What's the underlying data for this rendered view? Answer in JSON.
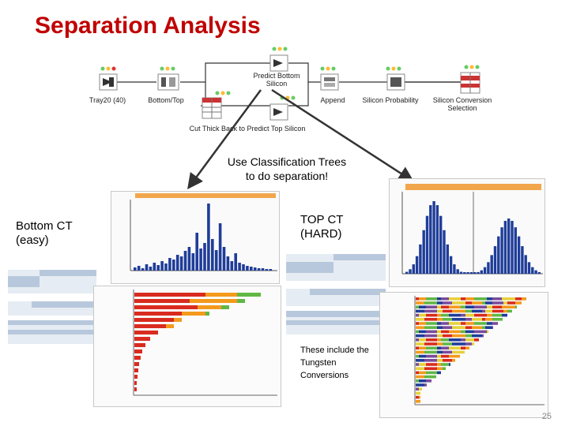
{
  "title": "Separation Analysis",
  "workflow": {
    "nodes": [
      {
        "key": "tray",
        "label": "Tray20 (40)"
      },
      {
        "key": "bottom",
        "label": "Bottom/Top"
      },
      {
        "key": "predict_bottom",
        "label": "Predict Bottom\nSilicon"
      },
      {
        "key": "cut",
        "label": "Cut Thick Back to Predict Top Silicon"
      },
      {
        "key": "append",
        "label": "Append"
      },
      {
        "key": "prob",
        "label": "Silicon Probability"
      },
      {
        "key": "conv",
        "label": "Silicon Conversion\nSelection"
      }
    ]
  },
  "callout": "Use Classification Trees\nto do separation!",
  "left_label": "Bottom CT\n(easy)",
  "right_label": "TOP CT\n(HARD)",
  "tungsten_note": "These include the\nTungsten\nConversions",
  "page_number": "25",
  "colors": {
    "title": "#c00000",
    "hist": "#1f3d99",
    "bar_red": "#d92b1f",
    "bar_orange": "#f39a1c",
    "bar_green": "#5fb845",
    "panel_header": "#b8c8dc"
  }
}
